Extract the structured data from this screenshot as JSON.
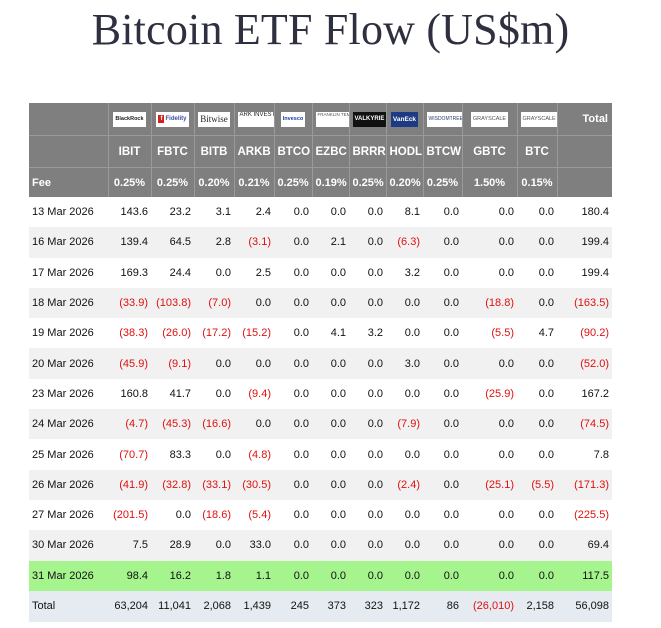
{
  "title": "Bitcoin ETF Flow (US$m)",
  "issuers": [
    {
      "key": "blackrock",
      "name": "BlackRock",
      "icon": "blackrock-logo"
    },
    {
      "key": "fidelity",
      "name": "Fidelity",
      "icon": "fidelity-logo"
    },
    {
      "key": "bitwise",
      "name": "Bitwise",
      "icon": "bitwise-logo"
    },
    {
      "key": "ark",
      "name": "ARK INVEST",
      "icon": "ark-invest-logo"
    },
    {
      "key": "invesco",
      "name": "Invesco",
      "icon": "invesco-logo"
    },
    {
      "key": "franklin",
      "name": "FRANKLIN TEMPLETON",
      "icon": "franklin-templeton-logo"
    },
    {
      "key": "valkyrie",
      "name": "VALKYRIE",
      "icon": "valkyrie-logo"
    },
    {
      "key": "vaneck",
      "name": "VanEck",
      "icon": "vaneck-logo"
    },
    {
      "key": "wisdomtree",
      "name": "WISDOMTREE",
      "icon": "wisdomtree-logo"
    },
    {
      "key": "grayscale1",
      "name": "GRAYSCALE",
      "icon": "grayscale-logo"
    },
    {
      "key": "grayscale2",
      "name": "GRAYSCALE",
      "icon": "grayscale-logo"
    }
  ],
  "total_header": "Total",
  "fee_label": "Fee",
  "tickers": [
    "IBIT",
    "FBTC",
    "BITB",
    "ARKB",
    "BTCO",
    "EZBC",
    "BRRR",
    "HODL",
    "BTCW",
    "GBTC",
    "BTC"
  ],
  "fees": [
    "0.25%",
    "0.25%",
    "0.20%",
    "0.21%",
    "0.25%",
    "0.19%",
    "0.25%",
    "0.20%",
    "0.25%",
    "1.50%",
    "0.15%"
  ],
  "rows": [
    {
      "date": "13 Mar 2026",
      "values": [
        "143.6",
        "23.2",
        "3.1",
        "2.4",
        "0.0",
        "0.0",
        "0.0",
        "8.1",
        "0.0",
        "0.0",
        "0.0"
      ],
      "total": "180.4"
    },
    {
      "date": "16 Mar 2026",
      "values": [
        "139.4",
        "64.5",
        "2.8",
        "(3.1)",
        "0.0",
        "2.1",
        "0.0",
        "(6.3)",
        "0.0",
        "0.0",
        "0.0"
      ],
      "total": "199.4"
    },
    {
      "date": "17 Mar 2026",
      "values": [
        "169.3",
        "24.4",
        "0.0",
        "2.5",
        "0.0",
        "0.0",
        "0.0",
        "3.2",
        "0.0",
        "0.0",
        "0.0"
      ],
      "total": "199.4"
    },
    {
      "date": "18 Mar 2026",
      "values": [
        "(33.9)",
        "(103.8)",
        "(7.0)",
        "0.0",
        "0.0",
        "0.0",
        "0.0",
        "0.0",
        "0.0",
        "(18.8)",
        "0.0"
      ],
      "total": "(163.5)"
    },
    {
      "date": "19 Mar 2026",
      "values": [
        "(38.3)",
        "(26.0)",
        "(17.2)",
        "(15.2)",
        "0.0",
        "4.1",
        "3.2",
        "0.0",
        "0.0",
        "(5.5)",
        "4.7"
      ],
      "total": "(90.2)"
    },
    {
      "date": "20 Mar 2026",
      "values": [
        "(45.9)",
        "(9.1)",
        "0.0",
        "0.0",
        "0.0",
        "0.0",
        "0.0",
        "3.0",
        "0.0",
        "0.0",
        "0.0"
      ],
      "total": "(52.0)"
    },
    {
      "date": "23 Mar 2026",
      "values": [
        "160.8",
        "41.7",
        "0.0",
        "(9.4)",
        "0.0",
        "0.0",
        "0.0",
        "0.0",
        "0.0",
        "(25.9)",
        "0.0"
      ],
      "total": "167.2"
    },
    {
      "date": "24 Mar 2026",
      "values": [
        "(4.7)",
        "(45.3)",
        "(16.6)",
        "0.0",
        "0.0",
        "0.0",
        "0.0",
        "(7.9)",
        "0.0",
        "0.0",
        "0.0"
      ],
      "total": "(74.5)"
    },
    {
      "date": "25 Mar 2026",
      "values": [
        "(70.7)",
        "83.3",
        "0.0",
        "(4.8)",
        "0.0",
        "0.0",
        "0.0",
        "0.0",
        "0.0",
        "0.0",
        "0.0"
      ],
      "total": "7.8"
    },
    {
      "date": "26 Mar 2026",
      "values": [
        "(41.9)",
        "(32.8)",
        "(33.1)",
        "(30.5)",
        "0.0",
        "0.0",
        "0.0",
        "(2.4)",
        "0.0",
        "(25.1)",
        "(5.5)"
      ],
      "total": "(171.3)"
    },
    {
      "date": "27 Mar 2026",
      "values": [
        "(201.5)",
        "0.0",
        "(18.6)",
        "(5.4)",
        "0.0",
        "0.0",
        "0.0",
        "0.0",
        "0.0",
        "0.0",
        "0.0"
      ],
      "total": "(225.5)"
    },
    {
      "date": "30 Mar 2026",
      "values": [
        "7.5",
        "28.9",
        "0.0",
        "33.0",
        "0.0",
        "0.0",
        "0.0",
        "0.0",
        "0.0",
        "0.0",
        "0.0"
      ],
      "total": "69.4"
    },
    {
      "date": "31 Mar 2026",
      "values": [
        "98.4",
        "16.2",
        "1.8",
        "1.1",
        "0.0",
        "0.0",
        "0.0",
        "0.0",
        "0.0",
        "0.0",
        "0.0"
      ],
      "total": "117.5",
      "highlight": true
    }
  ],
  "totals_row": {
    "label": "Total",
    "values": [
      "63,204",
      "11,041",
      "2,068",
      "1,439",
      "245",
      "373",
      "323",
      "1,172",
      "86",
      "(26,010)",
      "2,158"
    ],
    "total": "56,098"
  },
  "colors": {
    "header_bg": "#7f7f7f",
    "negative": "#e01010",
    "highlight_row": "#a6f48e",
    "total_row_bg": "#e6ebf1",
    "title": "#2e3040"
  }
}
